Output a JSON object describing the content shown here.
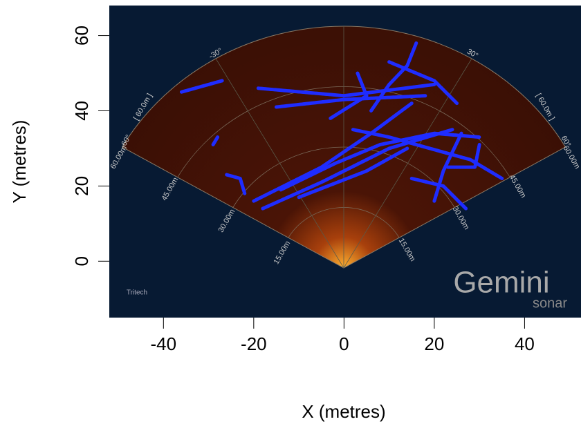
{
  "chart_data": {
    "type": "line",
    "x_label": "X (metres)",
    "y_label": "Y (metres)",
    "xlim": [
      -52,
      52.5
    ],
    "ylim": [
      -15,
      68
    ],
    "xticks": [
      -40,
      -20,
      0,
      20,
      40
    ],
    "yticks": [
      0,
      20,
      40,
      60
    ],
    "series": [
      {
        "color": "#1f2cff",
        "x": [
          -36,
          -27
        ],
        "values": [
          45,
          48
        ]
      },
      {
        "color": "#1f2cff",
        "x": [
          -19,
          0,
          20
        ],
        "values": [
          46,
          44,
          47
        ]
      },
      {
        "color": "#1f2cff",
        "x": [
          -15,
          0,
          18
        ],
        "values": [
          41,
          43,
          44
        ]
      },
      {
        "color": "#1f2cff",
        "x": [
          16,
          14,
          10,
          6
        ],
        "values": [
          58,
          52,
          47,
          40
        ]
      },
      {
        "color": "#1f2cff",
        "x": [
          10,
          20,
          25
        ],
        "values": [
          53,
          48,
          42
        ]
      },
      {
        "color": "#1f2cff",
        "x": [
          -29,
          -28
        ],
        "values": [
          31,
          33
        ]
      },
      {
        "color": "#1f2cff",
        "x": [
          -26,
          -23,
          -22
        ],
        "values": [
          23,
          22,
          18
        ]
      },
      {
        "color": "#1f2cff",
        "x": [
          -20,
          -5,
          6,
          15
        ],
        "values": [
          16,
          25,
          34,
          42
        ]
      },
      {
        "color": "#1f2cff",
        "x": [
          -14,
          -2,
          8,
          20,
          30
        ],
        "values": [
          19,
          26,
          31,
          34,
          33
        ]
      },
      {
        "color": "#1f2cff",
        "x": [
          -18,
          -5,
          10,
          24
        ],
        "values": [
          14,
          21,
          30,
          35
        ]
      },
      {
        "color": "#1f2cff",
        "x": [
          -10,
          5,
          14
        ],
        "values": [
          17,
          24,
          30
        ]
      },
      {
        "color": "#1f2cff",
        "x": [
          2,
          10,
          28,
          35
        ],
        "values": [
          35,
          33,
          27,
          22
        ]
      },
      {
        "color": "#1f2cff",
        "x": [
          20,
          22,
          26
        ],
        "values": [
          16,
          24,
          34
        ]
      },
      {
        "color": "#1f2cff",
        "x": [
          -3,
          5,
          3
        ],
        "values": [
          38,
          44,
          50
        ]
      },
      {
        "color": "#1f2cff",
        "x": [
          15,
          22,
          27
        ],
        "values": [
          22,
          20,
          14
        ]
      },
      {
        "color": "#1f2cff",
        "x": [
          23,
          29,
          30
        ],
        "values": [
          25,
          25,
          31
        ]
      }
    ],
    "annotations": [
      "-30°",
      "30°",
      "-60°",
      "60.00m",
      "60°",
      "60.00m",
      "[ 60.0m ]",
      "[ 60.0m ]",
      "45.00m",
      "45.00m",
      "30.00m",
      "30.00m",
      "15.00m",
      "15.00m",
      "Gemini",
      "sonar",
      "Tritech"
    ]
  }
}
